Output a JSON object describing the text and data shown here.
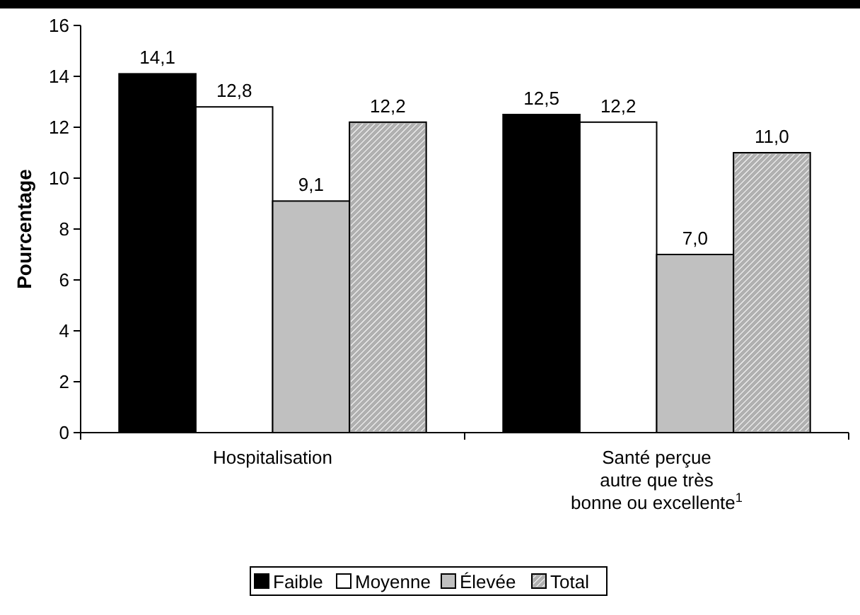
{
  "chart_data": {
    "type": "bar",
    "ylabel": "Pourcentage",
    "categories": [
      "Hospitalisation",
      "Santé perçue\nautre que très\nbonne ou excellente$^{1}$"
    ],
    "series": [
      {
        "name": "Faible",
        "color": "#000000",
        "values": [
          14.1,
          12.5
        ],
        "value_labels": [
          "14,1",
          "12,5"
        ]
      },
      {
        "name": "Moyenne",
        "color": "#ffffff",
        "values": [
          12.8,
          12.2
        ],
        "value_labels": [
          "12,8",
          "12,2"
        ]
      },
      {
        "name": "Élevée",
        "color": "#c0c0c0",
        "values": [
          9.1,
          7.0
        ],
        "value_labels": [
          "9,1",
          "7,0"
        ]
      },
      {
        "name": "Total",
        "color": "#b0b0b0",
        "values": [
          12.2,
          11.0
        ],
        "value_labels": [
          "12,2",
          "11,0"
        ]
      }
    ],
    "ylim": [
      0,
      16
    ],
    "yticks": [
      0,
      2,
      4,
      6,
      8,
      10,
      12,
      14,
      16
    ],
    "grid": false,
    "legend": "bottom"
  }
}
